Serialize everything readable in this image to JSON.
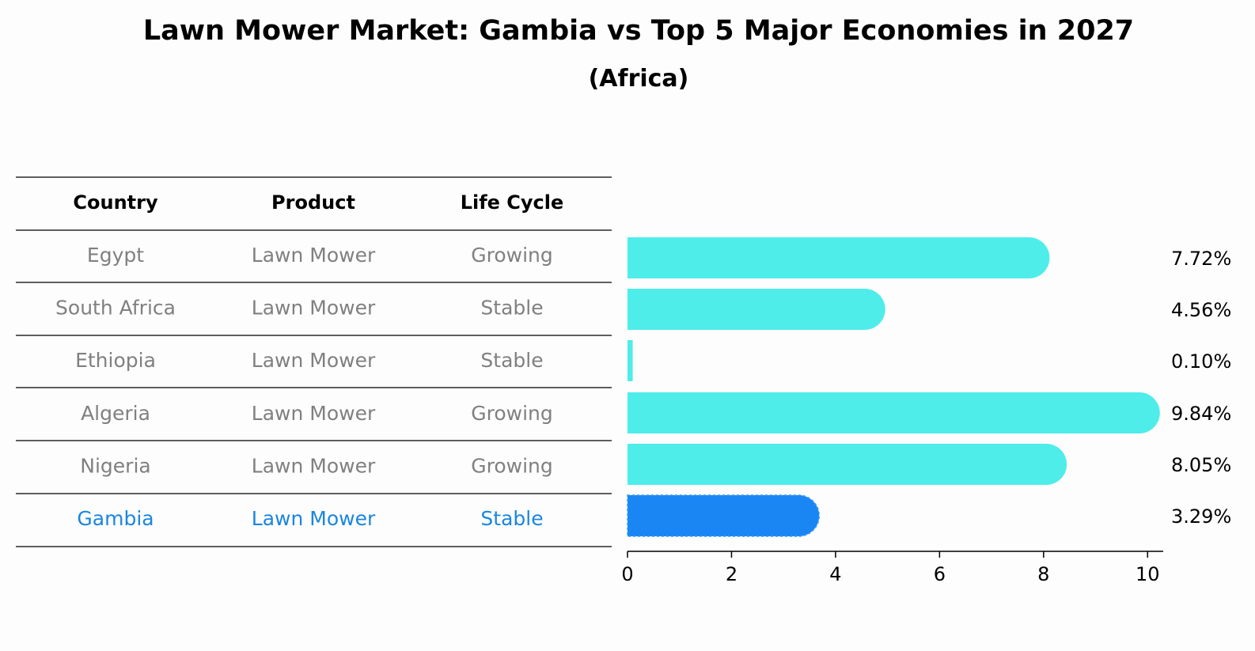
{
  "title": "Lawn Mower Market: Gambia vs Top 5 Major Economies in 2027",
  "subtitle": "(Africa)",
  "colors": {
    "bar": "#4EEDEA",
    "highlight_bar": "#1A86F4",
    "row_text": "#808080",
    "highlight_text": "#1A86E0",
    "rule": "#000000"
  },
  "table": {
    "columns": [
      "Country",
      "Product",
      "Life Cycle"
    ],
    "rows": [
      {
        "country": "Egypt",
        "product": "Lawn Mower",
        "life_cycle": "Growing",
        "highlight": false
      },
      {
        "country": "South Africa",
        "product": "Lawn Mower",
        "life_cycle": "Stable",
        "highlight": false
      },
      {
        "country": "Ethiopia",
        "product": "Lawn Mower",
        "life_cycle": "Stable",
        "highlight": false
      },
      {
        "country": "Algeria",
        "product": "Lawn Mower",
        "life_cycle": "Growing",
        "highlight": false
      },
      {
        "country": "Nigeria",
        "product": "Lawn Mower",
        "life_cycle": "Growing",
        "highlight": false
      },
      {
        "country": "Gambia",
        "product": "Lawn Mower",
        "life_cycle": "Stable",
        "highlight": true
      }
    ]
  },
  "chart_data": {
    "type": "bar",
    "orientation": "horizontal",
    "categories": [
      "Egypt",
      "South Africa",
      "Ethiopia",
      "Algeria",
      "Nigeria",
      "Gambia"
    ],
    "values": [
      7.72,
      4.56,
      0.1,
      9.84,
      8.05,
      3.29
    ],
    "value_labels": [
      "7.72%",
      "4.56%",
      "0.10%",
      "9.84%",
      "8.05%",
      "3.29%"
    ],
    "highlight_index": 5,
    "xlim": [
      0,
      10.3
    ],
    "xticks": [
      0,
      2,
      4,
      6,
      8,
      10
    ],
    "xtick_labels": [
      "0",
      "2",
      "4",
      "6",
      "8",
      "10"
    ],
    "grid": false,
    "legend": "none"
  }
}
